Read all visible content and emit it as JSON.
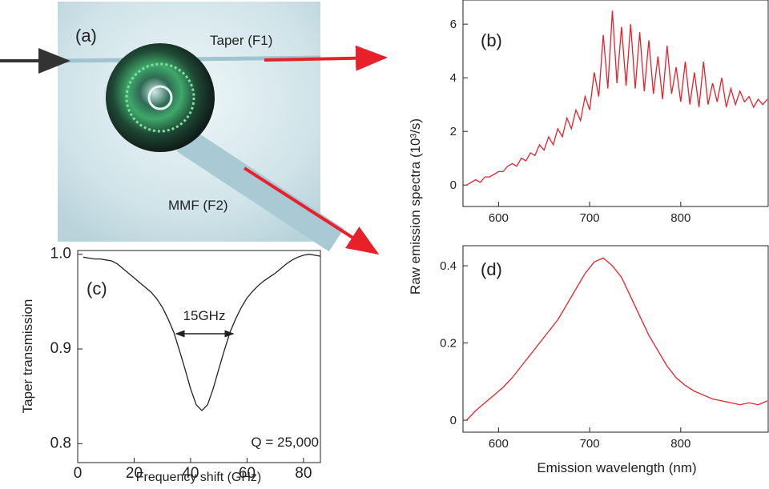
{
  "photo": {
    "label": "(a)",
    "annotations": [
      "Taper (F1)",
      "MMF (F2)"
    ]
  },
  "chart_data": [
    {
      "type": "line",
      "title": "(b)",
      "ylabel": "Raw emission spectra (10³/s)",
      "color": "#e8202a",
      "x": [
        565,
        570,
        575,
        580,
        585,
        590,
        595,
        600,
        605,
        610,
        615,
        620,
        625,
        630,
        635,
        640,
        645,
        650,
        655,
        660,
        665,
        670,
        675,
        680,
        685,
        690,
        695,
        700,
        705,
        710,
        715,
        720,
        725,
        730,
        735,
        740,
        745,
        750,
        755,
        760,
        765,
        770,
        775,
        780,
        785,
        790,
        795,
        800,
        805,
        810,
        815,
        820,
        825,
        830,
        835,
        840,
        845,
        850,
        855,
        860,
        865,
        870,
        875,
        880,
        885,
        890,
        895
      ],
      "values": [
        0.0,
        0.1,
        0.2,
        0.1,
        0.3,
        0.3,
        0.4,
        0.5,
        0.5,
        0.7,
        0.8,
        0.7,
        1.0,
        0.9,
        1.2,
        1.1,
        1.5,
        1.3,
        1.8,
        1.5,
        2.1,
        1.8,
        2.5,
        2.1,
        2.8,
        2.4,
        3.3,
        2.8,
        4.2,
        3.3,
        5.6,
        3.6,
        6.5,
        3.8,
        5.9,
        3.7,
        6.0,
        3.6,
        5.7,
        3.5,
        5.4,
        3.4,
        4.8,
        3.2,
        5.2,
        3.4,
        4.4,
        3.1,
        4.6,
        3.0,
        4.2,
        2.9,
        4.6,
        3.0,
        3.8,
        3.1,
        4.0,
        2.9,
        3.6,
        3.0,
        3.5,
        3.1,
        3.3,
        2.9,
        3.2,
        3.0,
        3.2
      ],
      "xlim": [
        561,
        896
      ],
      "ylim": [
        -0.8,
        6.9
      ],
      "xticks": [
        600,
        700,
        800
      ],
      "yticks": [
        0,
        2,
        4,
        6
      ]
    },
    {
      "type": "line",
      "title": "(c)",
      "xlabel": "Frequency shift (GHz)",
      "ylabel": "Taper transmission",
      "color": "#222222",
      "annotations": [
        "15GHz",
        "Q = 25,000"
      ],
      "x": [
        2,
        4,
        6,
        8,
        10,
        12,
        14,
        16,
        18,
        20,
        22,
        24,
        26,
        28,
        30,
        32,
        34,
        36,
        38,
        40,
        42,
        44,
        46,
        48,
        50,
        52,
        54,
        56,
        58,
        60,
        62,
        64,
        66,
        68,
        70,
        72,
        74,
        76,
        78,
        80,
        82,
        84,
        86
      ],
      "values": [
        0.997,
        0.996,
        0.995,
        0.995,
        0.994,
        0.993,
        0.99,
        0.985,
        0.98,
        0.975,
        0.97,
        0.965,
        0.96,
        0.953,
        0.944,
        0.932,
        0.918,
        0.899,
        0.879,
        0.858,
        0.841,
        0.835,
        0.841,
        0.858,
        0.879,
        0.899,
        0.918,
        0.932,
        0.944,
        0.954,
        0.961,
        0.967,
        0.972,
        0.976,
        0.98,
        0.985,
        0.99,
        0.994,
        0.997,
        0.999,
        1.0,
        0.999,
        0.998
      ],
      "xlim": [
        0,
        86
      ],
      "ylim": [
        0.78,
        1.004
      ],
      "xticks": [
        0,
        20,
        40,
        60,
        80
      ],
      "yticks": [
        0.8,
        0.9,
        {
          "value": 1,
          "label": "1.0"
        }
      ]
    },
    {
      "type": "line",
      "title": "(d)",
      "xlabel": "Emission wavelength (nm)",
      "color": "#e8202a",
      "x": [
        565,
        575,
        585,
        595,
        605,
        615,
        625,
        635,
        645,
        655,
        665,
        675,
        685,
        695,
        705,
        715,
        725,
        735,
        745,
        755,
        765,
        775,
        785,
        795,
        805,
        815,
        825,
        835,
        845,
        855,
        865,
        875,
        885,
        895
      ],
      "values": [
        0,
        0.025,
        0.045,
        0.065,
        0.085,
        0.11,
        0.14,
        0.17,
        0.2,
        0.23,
        0.26,
        0.3,
        0.34,
        0.38,
        0.41,
        0.42,
        0.4,
        0.37,
        0.32,
        0.27,
        0.22,
        0.18,
        0.14,
        0.11,
        0.09,
        0.075,
        0.065,
        0.055,
        0.05,
        0.045,
        0.04,
        0.045,
        0.04,
        0.05
      ],
      "xlim": [
        561,
        896
      ],
      "ylim": [
        -0.031,
        0.452
      ],
      "xticks": [
        600,
        700,
        800
      ],
      "yticks": [
        0,
        0.2,
        0.4
      ]
    }
  ]
}
